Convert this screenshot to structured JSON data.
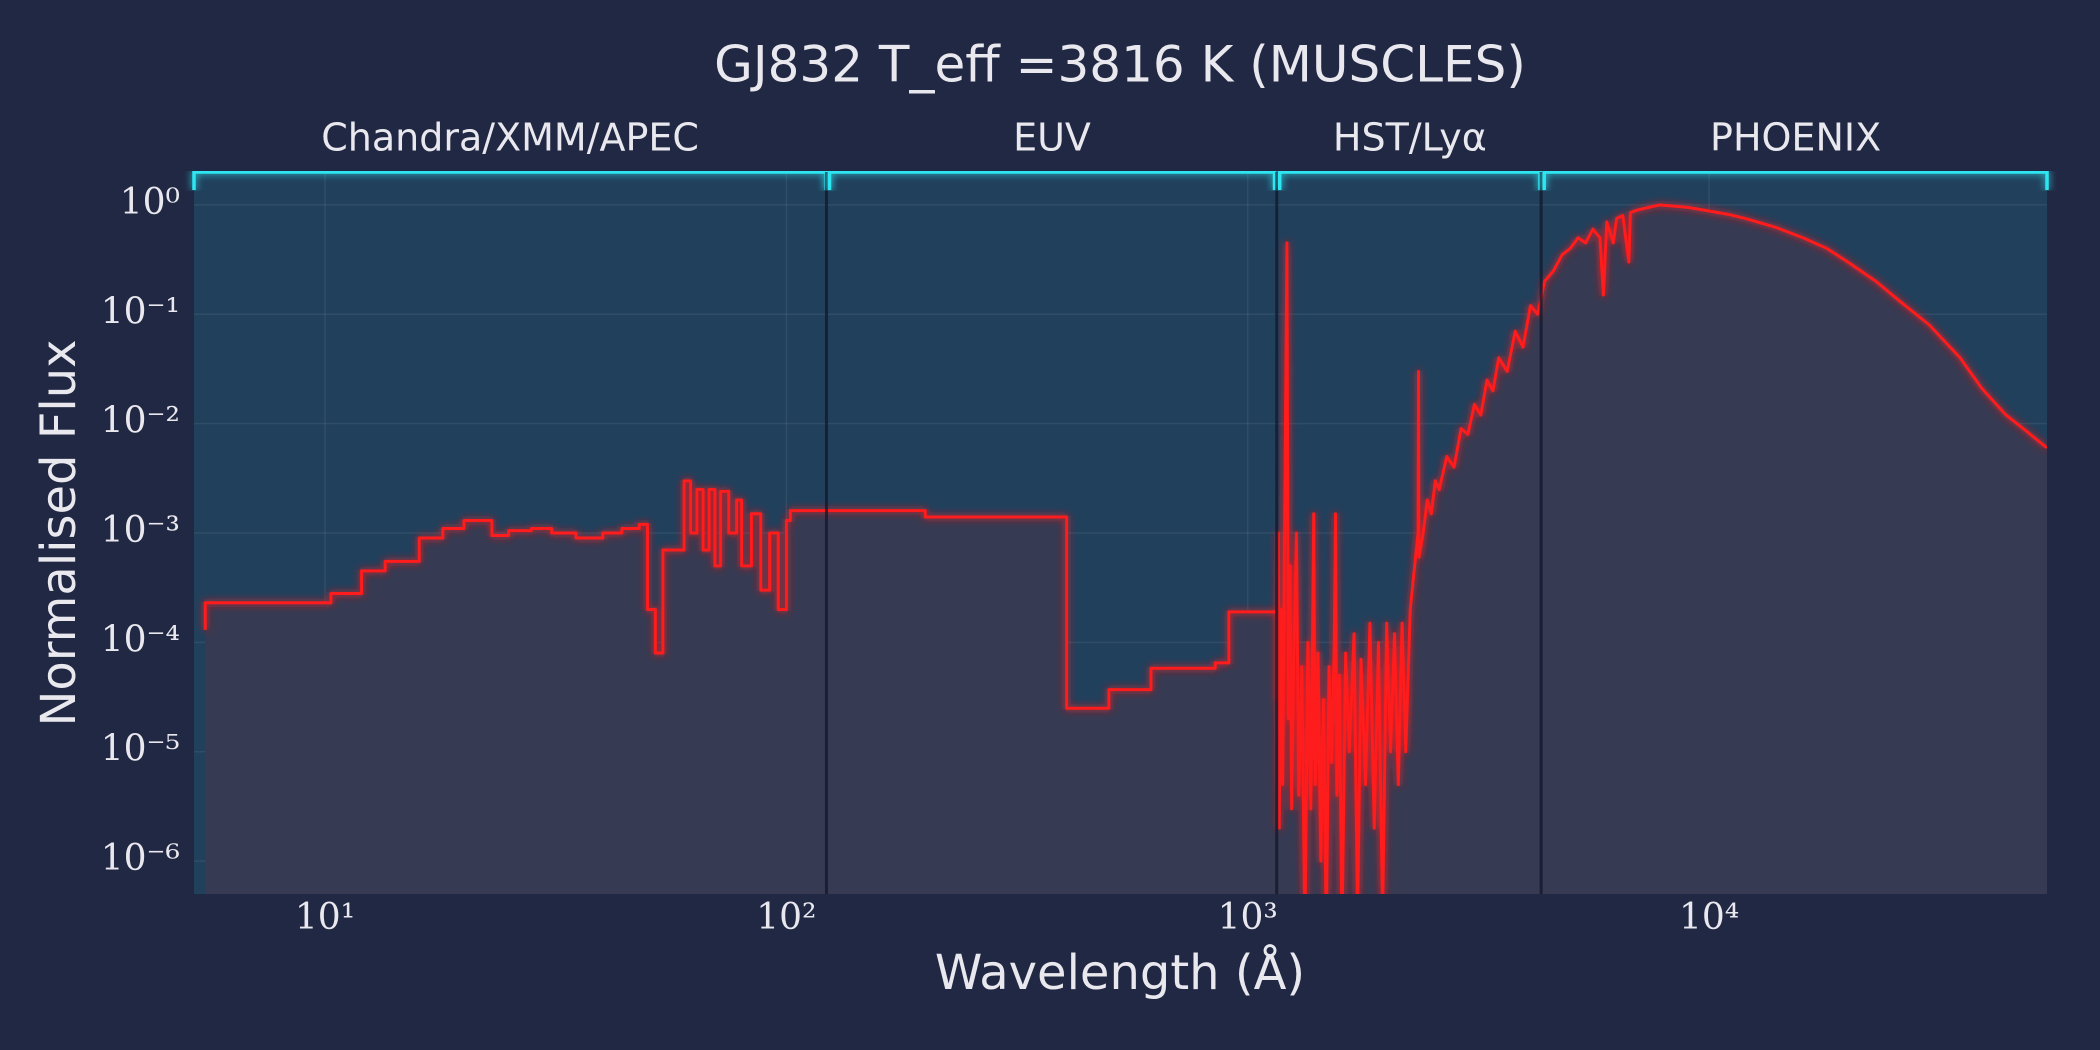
{
  "chart_data": {
    "type": "line",
    "title": "GJ832 T_eff =3816 K (MUSCLES)",
    "xlabel": "Wavelength (Å)",
    "ylabel": "Normalised Flux",
    "xscale": "log",
    "yscale": "log",
    "grid": true,
    "xlim": [
      5.2,
      54000
    ],
    "ylim": [
      5e-07,
      2
    ],
    "xticks": [
      {
        "value": 10,
        "label": "10¹"
      },
      {
        "value": 100,
        "label": "10²"
      },
      {
        "value": 1000,
        "label": "10³"
      },
      {
        "value": 10000,
        "label": "10⁴"
      }
    ],
    "yticks": [
      {
        "value": 1,
        "label": "10⁰"
      },
      {
        "value": 0.1,
        "label": "10⁻¹"
      },
      {
        "value": 0.01,
        "label": "10⁻²"
      },
      {
        "value": 0.001,
        "label": "10⁻³"
      },
      {
        "value": 0.0001,
        "label": "10⁻⁴"
      },
      {
        "value": 1e-05,
        "label": "10⁻⁵"
      },
      {
        "value": 1e-06,
        "label": "10⁻⁶"
      }
    ],
    "regions": [
      {
        "label": "Chandra/XMM/APEC",
        "range": [
          5.2,
          122
        ]
      },
      {
        "label": "EUV",
        "range": [
          124,
          1143
        ]
      },
      {
        "label": "HST/Lyα",
        "range": [
          1173,
          4300
        ]
      },
      {
        "label": "PHOENIX",
        "range": [
          4390,
          54000
        ]
      }
    ],
    "series": [
      {
        "name": "GJ832",
        "color": "#ff1a1a",
        "x": [
          5.5,
          5.5,
          10.3,
          10.3,
          12,
          12,
          13.5,
          13.5,
          16,
          16,
          18,
          18,
          20,
          20,
          23,
          23,
          25,
          25,
          28,
          28,
          31,
          31,
          35,
          35,
          40,
          40,
          44,
          44,
          48,
          48,
          50,
          50,
          52,
          52,
          54,
          54,
          60,
          60,
          62,
          62,
          64,
          64,
          66,
          66,
          68,
          68,
          70,
          70,
          72,
          72,
          75,
          75,
          78,
          78,
          80,
          80,
          84,
          84,
          88,
          88,
          92,
          92,
          96,
          96,
          100,
          100,
          102,
          102,
          200,
          200,
          405,
          405,
          500,
          500,
          617,
          617,
          850,
          850,
          910,
          910,
          1160,
          1160,
          1165,
          1170,
          1180,
          1190,
          1216,
          1225,
          1235,
          1245,
          1260,
          1275,
          1290,
          1310,
          1330,
          1350,
          1370,
          1390,
          1400,
          1420,
          1440,
          1460,
          1480,
          1500,
          1520,
          1540,
          1550,
          1560,
          1580,
          1600,
          1630,
          1660,
          1700,
          1730,
          1760,
          1800,
          1840,
          1880,
          1920,
          1960,
          2000,
          2040,
          2080,
          2120,
          2160,
          2200,
          2250,
          2300,
          2340,
          2345,
          2350,
          2400,
          2450,
          2500,
          2550,
          2600,
          2700,
          2800,
          2900,
          3000,
          3100,
          3200,
          3300,
          3400,
          3500,
          3650,
          3800,
          3950,
          4100,
          4250,
          4400,
          4600,
          4800,
          5000,
          5200,
          5400,
          5600,
          5800,
          5900,
          6000,
          6200,
          6300,
          6500,
          6700,
          6750,
          7000,
          7400,
          7800,
          8500,
          9000,
          10000,
          11000,
          12000,
          14000,
          16000,
          18000,
          20000,
          23000,
          26000,
          30000,
          35000,
          39000,
          44000,
          48000,
          54000
        ],
        "values": [
          0.00013,
          0.00023,
          0.00023,
          0.00028,
          0.00028,
          0.00045,
          0.00045,
          0.00055,
          0.00055,
          0.0009,
          0.0009,
          0.0011,
          0.0011,
          0.0013,
          0.0013,
          0.00095,
          0.00095,
          0.00105,
          0.00105,
          0.0011,
          0.0011,
          0.001,
          0.001,
          0.0009,
          0.0009,
          0.001,
          0.001,
          0.0011,
          0.0011,
          0.0012,
          0.0012,
          0.0002,
          0.0002,
          8e-05,
          8e-05,
          0.0007,
          0.0007,
          0.003,
          0.003,
          0.001,
          0.001,
          0.0025,
          0.0025,
          0.0007,
          0.0007,
          0.0025,
          0.0025,
          0.0005,
          0.0005,
          0.0024,
          0.0024,
          0.001,
          0.001,
          0.002,
          0.002,
          0.0005,
          0.0005,
          0.0015,
          0.0015,
          0.0003,
          0.0003,
          0.001,
          0.001,
          0.0002,
          0.0002,
          0.0013,
          0.0013,
          0.0016,
          0.0016,
          0.0014,
          0.0014,
          2.5e-05,
          2.5e-05,
          3.7e-05,
          3.7e-05,
          5.8e-05,
          5.8e-05,
          6.5e-05,
          6.5e-05,
          0.00019,
          0.00019,
          3e-05,
          0.001,
          2e-06,
          0.0002,
          5e-06,
          0.45,
          2e-05,
          0.0005,
          3e-06,
          0.0001,
          0.001,
          4e-06,
          6e-05,
          2e-07,
          0.0001,
          3e-06,
          0.0015,
          5e-06,
          8e-05,
          1e-06,
          3e-05,
          2e-07,
          6e-05,
          8e-06,
          0.0001,
          0.0015,
          4e-06,
          5e-05,
          2e-07,
          8e-05,
          1e-05,
          0.00012,
          3e-07,
          7e-05,
          5e-06,
          0.00015,
          2e-06,
          0.0001,
          3e-07,
          0.00015,
          1e-05,
          0.00012,
          5e-06,
          0.00015,
          1e-05,
          0.0002,
          0.0005,
          0.001,
          0.03,
          0.0006,
          0.001,
          0.002,
          0.0015,
          0.003,
          0.0025,
          0.005,
          0.004,
          0.009,
          0.008,
          0.015,
          0.012,
          0.025,
          0.02,
          0.04,
          0.03,
          0.07,
          0.05,
          0.12,
          0.1,
          0.2,
          0.25,
          0.35,
          0.4,
          0.5,
          0.45,
          0.6,
          0.5,
          0.15,
          0.7,
          0.45,
          0.75,
          0.8,
          0.3,
          0.85,
          0.9,
          0.95,
          1.0,
          0.97,
          0.95,
          0.88,
          0.82,
          0.75,
          0.62,
          0.5,
          0.4,
          0.3,
          0.2,
          0.13,
          0.08,
          0.04,
          0.021,
          0.012,
          0.009,
          0.006
        ]
      }
    ]
  }
}
